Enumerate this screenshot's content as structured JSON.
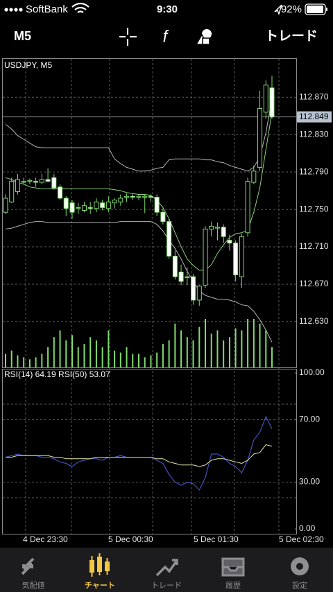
{
  "status_bar": {
    "carrier": "SoftBank",
    "time": "9:30",
    "battery": "92%"
  },
  "toolbar": {
    "timeframe": "M5",
    "function_icon": "f",
    "trade_button": "トレード"
  },
  "price_chart": {
    "type": "candlestick",
    "title": "USDJPY, M5",
    "ylim": [
      112.581,
      112.911
    ],
    "yticks": [
      {
        "value": 112.87,
        "label": "112.870"
      },
      {
        "value": 112.83,
        "label": "112.830"
      },
      {
        "value": 112.79,
        "label": "112.790"
      },
      {
        "value": 112.75,
        "label": "112.750"
      },
      {
        "value": 112.71,
        "label": "112.710"
      },
      {
        "value": 112.67,
        "label": "112.670"
      },
      {
        "value": 112.63,
        "label": "112.630"
      }
    ],
    "color": "#7fdc6c",
    "candles": {
      "open": [
        112.747,
        112.758,
        112.769,
        112.779,
        112.78,
        112.78,
        112.779,
        112.782,
        112.784,
        112.774,
        112.762,
        112.757,
        112.751,
        112.749,
        112.752,
        112.751,
        112.757,
        112.751,
        112.757,
        112.758,
        112.763,
        112.764,
        112.763,
        112.763,
        112.764,
        112.763,
        112.747,
        112.737,
        112.7,
        112.683,
        112.677,
        112.678,
        112.653,
        112.669,
        112.729,
        112.73,
        112.731,
        112.717,
        112.714,
        112.678,
        112.725,
        112.779,
        112.795,
        112.854,
        112.88
      ],
      "high": [
        112.766,
        112.784,
        112.788,
        112.784,
        112.783,
        112.784,
        112.788,
        112.794,
        112.788,
        112.777,
        112.764,
        112.76,
        112.757,
        112.758,
        112.758,
        112.762,
        112.76,
        112.764,
        112.762,
        112.766,
        112.767,
        112.767,
        112.766,
        112.766,
        112.766,
        112.766,
        112.751,
        112.74,
        112.706,
        112.691,
        112.688,
        112.681,
        112.669,
        112.732,
        112.737,
        112.736,
        112.734,
        112.723,
        112.717,
        112.724,
        112.784,
        112.797,
        112.877,
        112.888,
        112.893
      ],
      "low": [
        112.745,
        112.757,
        112.766,
        112.777,
        112.777,
        112.774,
        112.777,
        112.779,
        112.771,
        112.76,
        112.743,
        112.74,
        112.745,
        112.747,
        112.745,
        112.747,
        112.749,
        112.747,
        112.751,
        112.754,
        112.758,
        112.76,
        112.76,
        112.746,
        112.758,
        112.743,
        112.734,
        112.697,
        112.675,
        112.669,
        112.669,
        112.648,
        112.647,
        112.666,
        112.721,
        112.717,
        112.714,
        112.706,
        112.673,
        112.666,
        112.721,
        112.777,
        112.791,
        112.847,
        112.847
      ],
      "close": [
        112.762,
        112.78,
        112.782,
        112.78,
        112.781,
        112.779,
        112.782,
        112.78,
        112.773,
        112.762,
        112.751,
        112.747,
        112.752,
        112.754,
        112.751,
        112.758,
        112.752,
        112.758,
        112.76,
        112.762,
        112.764,
        112.763,
        112.764,
        112.764,
        112.763,
        112.747,
        112.737,
        112.7,
        112.678,
        112.673,
        112.678,
        112.653,
        112.668,
        112.729,
        112.732,
        112.731,
        112.721,
        112.714,
        112.68,
        112.721,
        112.78,
        112.791,
        112.858,
        112.883,
        112.849
      ]
    },
    "bollinger": {
      "band_color": "#b4b4b4",
      "middle_color": "#8fcf7c",
      "upper": [
        112.841,
        112.836,
        112.829,
        112.825,
        112.821,
        112.817,
        112.816,
        112.816,
        112.816,
        112.816,
        112.816,
        112.816,
        112.816,
        112.816,
        112.816,
        112.816,
        112.816,
        112.816,
        112.804,
        112.799,
        112.795,
        112.793,
        112.791,
        112.791,
        112.792,
        112.794,
        112.795,
        112.803,
        112.804,
        112.804,
        112.804,
        112.804,
        112.804,
        112.803,
        112.803,
        112.801,
        112.8,
        112.797,
        112.795,
        112.793,
        112.791,
        112.795,
        112.806,
        112.832,
        112.869
      ],
      "middle": [
        112.784,
        112.782,
        112.779,
        112.777,
        112.774,
        112.773,
        112.772,
        112.772,
        112.772,
        112.772,
        112.772,
        112.772,
        112.772,
        112.772,
        112.772,
        112.772,
        112.772,
        112.772,
        112.771,
        112.77,
        112.768,
        112.767,
        112.766,
        112.766,
        112.765,
        112.76,
        112.752,
        112.74,
        112.725,
        112.71,
        112.697,
        112.69,
        112.685,
        112.685,
        112.691,
        112.703,
        112.712,
        112.72,
        112.724,
        112.725,
        112.728,
        112.747,
        112.773,
        112.814,
        112.854
      ],
      "lower": [
        112.729,
        112.73,
        112.732,
        112.734,
        112.736,
        112.737,
        112.737,
        112.736,
        112.736,
        112.736,
        112.736,
        112.736,
        112.736,
        112.736,
        112.736,
        112.736,
        112.736,
        112.736,
        112.736,
        112.737,
        112.737,
        112.737,
        112.737,
        112.737,
        112.737,
        112.734,
        112.727,
        112.717,
        112.708,
        112.697,
        112.684,
        112.673,
        112.663,
        112.658,
        112.656,
        112.654,
        112.654,
        112.653,
        112.651,
        112.648,
        112.647,
        112.641,
        112.632,
        112.621,
        112.608
      ]
    },
    "volumes": [
      20,
      25,
      18,
      15,
      12,
      15,
      20,
      30,
      45,
      55,
      40,
      48,
      30,
      35,
      45,
      40,
      30,
      55,
      25,
      22,
      30,
      20,
      20,
      15,
      18,
      22,
      35,
      40,
      65,
      55,
      45,
      40,
      60,
      72,
      50,
      55,
      40,
      45,
      58,
      55,
      72,
      72,
      65,
      55,
      30
    ],
    "current_price": {
      "value": 112.849,
      "label": "112.849"
    }
  },
  "rsi_chart": {
    "type": "line",
    "title": "RSI(14) 64.19 RSI(50) 53.07",
    "ylim": [
      0,
      100
    ],
    "yticks": [
      {
        "value": 100,
        "label": "100.00"
      },
      {
        "value": 70,
        "label": "70.00"
      },
      {
        "value": 30,
        "label": "30.00"
      },
      {
        "value": 0,
        "label": "0.00"
      }
    ],
    "levels": [
      80,
      70,
      30,
      20
    ],
    "series": [
      {
        "color": "#4d5fe0",
        "values": [
          46,
          47,
          48,
          47,
          47,
          47,
          46,
          46,
          45,
          43,
          42,
          40,
          43,
          44,
          45,
          45,
          44,
          46,
          46,
          47,
          46,
          46,
          46,
          46,
          46,
          44,
          42,
          35,
          30,
          28,
          30,
          29,
          25,
          33,
          48,
          48,
          46,
          42,
          40,
          36,
          44,
          57,
          62,
          72,
          64.19
        ]
      },
      {
        "color": "#e6e6a8",
        "values": [
          46,
          46,
          47,
          47,
          47,
          47,
          47,
          47,
          46,
          46,
          45,
          45,
          45,
          45,
          45,
          46,
          46,
          46,
          46,
          46,
          46,
          46,
          46,
          46,
          46,
          45,
          45,
          43,
          42,
          41,
          41,
          41,
          40,
          41,
          44,
          45,
          45,
          44,
          43,
          42,
          44,
          48,
          49,
          54,
          53.07
        ]
      }
    ]
  },
  "time_axis": {
    "labels": [
      "4 Dec 23:30",
      "5 Dec 00:30",
      "5 Dec 01:30",
      "5 Dec 02:30"
    ]
  },
  "tab_bar": {
    "tabs": [
      "気配値",
      "チャート",
      "トレード",
      "履歴",
      "設定"
    ],
    "active": 1,
    "active_color": "#f3c742",
    "color": "#8e8e93"
  }
}
